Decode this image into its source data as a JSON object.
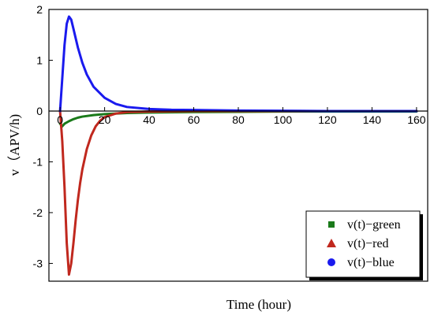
{
  "chart_data": {
    "type": "line",
    "title": "",
    "xlabel": "Time (hour)",
    "ylabel": "v（APV/h)",
    "xlim": [
      -5,
      165
    ],
    "ylim": [
      -3.35,
      2.0
    ],
    "x_ticks": [
      0,
      20,
      40,
      60,
      80,
      100,
      120,
      140,
      160
    ],
    "y_ticks": [
      2,
      1,
      0,
      -1,
      -2,
      -3
    ],
    "grid": false,
    "legend": {
      "placement": "bottom-right"
    },
    "series": [
      {
        "name": "v(t)−green",
        "color": "#1a7a1a",
        "marker": "square",
        "x": [
          0,
          1,
          2,
          4,
          6,
          8,
          10,
          15,
          20,
          30,
          40,
          60,
          80,
          100,
          120,
          140,
          160
        ],
        "y": [
          -0.25,
          -0.3,
          -0.25,
          -0.2,
          -0.16,
          -0.13,
          -0.11,
          -0.08,
          -0.06,
          -0.04,
          -0.03,
          -0.02,
          -0.015,
          -0.01,
          -0.01,
          -0.01,
          -0.01
        ]
      },
      {
        "name": "v(t)−red",
        "color": "#c0281e",
        "marker": "triangle",
        "x": [
          0,
          1,
          2,
          3,
          4,
          5,
          6,
          7,
          8,
          9,
          10,
          12,
          14,
          16,
          18,
          20,
          25,
          30,
          40,
          60,
          80,
          100,
          120,
          140,
          160
        ],
        "y": [
          0,
          -0.6,
          -1.5,
          -2.6,
          -3.22,
          -3.0,
          -2.6,
          -2.15,
          -1.75,
          -1.42,
          -1.15,
          -0.75,
          -0.48,
          -0.3,
          -0.19,
          -0.12,
          -0.05,
          -0.02,
          -0.01,
          0,
          0,
          0,
          0,
          0,
          0
        ]
      },
      {
        "name": "v(t)−blue",
        "color": "#1a1aee",
        "marker": "circle",
        "x": [
          0,
          1,
          2,
          3,
          4,
          5,
          6,
          8,
          10,
          12,
          15,
          20,
          25,
          30,
          40,
          50,
          60,
          80,
          100,
          120,
          140,
          160
        ],
        "y": [
          0,
          0.65,
          1.3,
          1.72,
          1.86,
          1.8,
          1.62,
          1.25,
          0.95,
          0.72,
          0.48,
          0.26,
          0.14,
          0.08,
          0.04,
          0.025,
          0.02,
          0.01,
          0.005,
          0,
          0,
          0
        ]
      }
    ]
  }
}
